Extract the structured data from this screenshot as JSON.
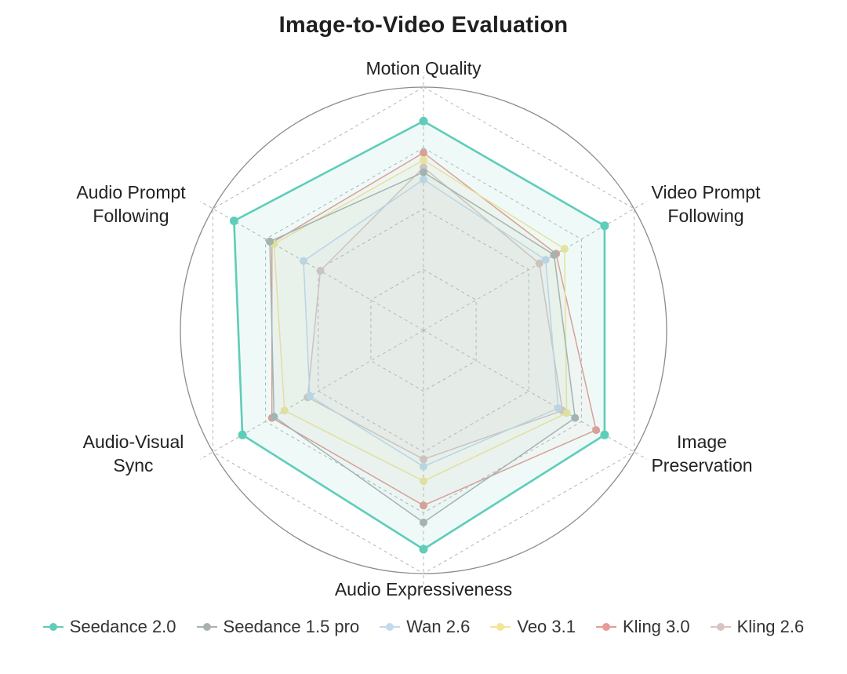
{
  "title": "Image-to-Video Evaluation",
  "chart_data": {
    "type": "radar",
    "title": "Image-to-Video Evaluation",
    "axes": [
      "Motion Quality",
      "Video Prompt\nFollowing",
      "Image\nPreservation",
      "Audio Expressiveness",
      "Audio-Visual\nSync",
      "Audio Prompt\nFollowing"
    ],
    "range": [
      0,
      1
    ],
    "grid": true,
    "grid_levels": 4,
    "legend_position": "bottom",
    "series": [
      {
        "name": "Seedance 2.0",
        "color": "#5ecdb9",
        "values": [
          0.86,
          0.86,
          0.86,
          0.9,
          0.86,
          0.9
        ]
      },
      {
        "name": "Seedance 1.5 pro",
        "color": "#aab2b0",
        "values": [
          0.65,
          0.62,
          0.72,
          0.79,
          0.71,
          0.73
        ]
      },
      {
        "name": "Wan 2.6",
        "color": "#c3d9ec",
        "values": [
          0.62,
          0.58,
          0.64,
          0.56,
          0.54,
          0.57
        ]
      },
      {
        "name": "Veo 3.1",
        "color": "#f3e59a",
        "values": [
          0.7,
          0.67,
          0.68,
          0.62,
          0.66,
          0.71
        ]
      },
      {
        "name": "Kling 3.0",
        "color": "#e69b95",
        "values": [
          0.73,
          0.63,
          0.82,
          0.72,
          0.72,
          0.72
        ]
      },
      {
        "name": "Kling 2.6",
        "color": "#dcc3c3",
        "values": [
          0.67,
          0.55,
          0.66,
          0.53,
          0.55,
          0.49
        ]
      }
    ]
  }
}
